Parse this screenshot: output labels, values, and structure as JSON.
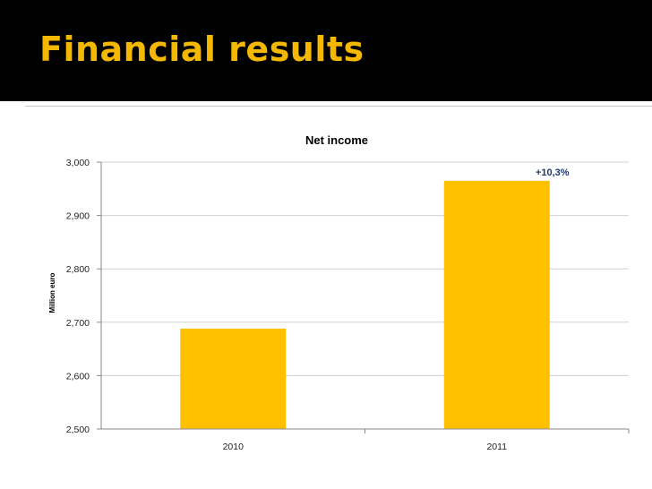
{
  "slide": {
    "title": "Financial results"
  },
  "colors": {
    "header_bg": "#000000",
    "title": "#f4b800",
    "bar": "#ffc000",
    "annotation": "#1f3a6e",
    "grid": "#d0d0d0"
  },
  "chart_data": {
    "type": "bar",
    "title": "Net income",
    "xlabel": "",
    "ylabel": "Million euro",
    "categories": [
      "2010",
      "2011"
    ],
    "values": [
      2688,
      2965
    ],
    "ylim": [
      2500,
      3000
    ],
    "yticks": [
      2500,
      2600,
      2700,
      2800,
      2900,
      3000
    ],
    "ytick_labels": [
      "2,500",
      "2,600",
      "2,700",
      "2,800",
      "2,900",
      "3,000"
    ],
    "grid": true,
    "legend": "none",
    "annotations": [
      {
        "text": "+10,3%",
        "category": "2011"
      }
    ]
  }
}
